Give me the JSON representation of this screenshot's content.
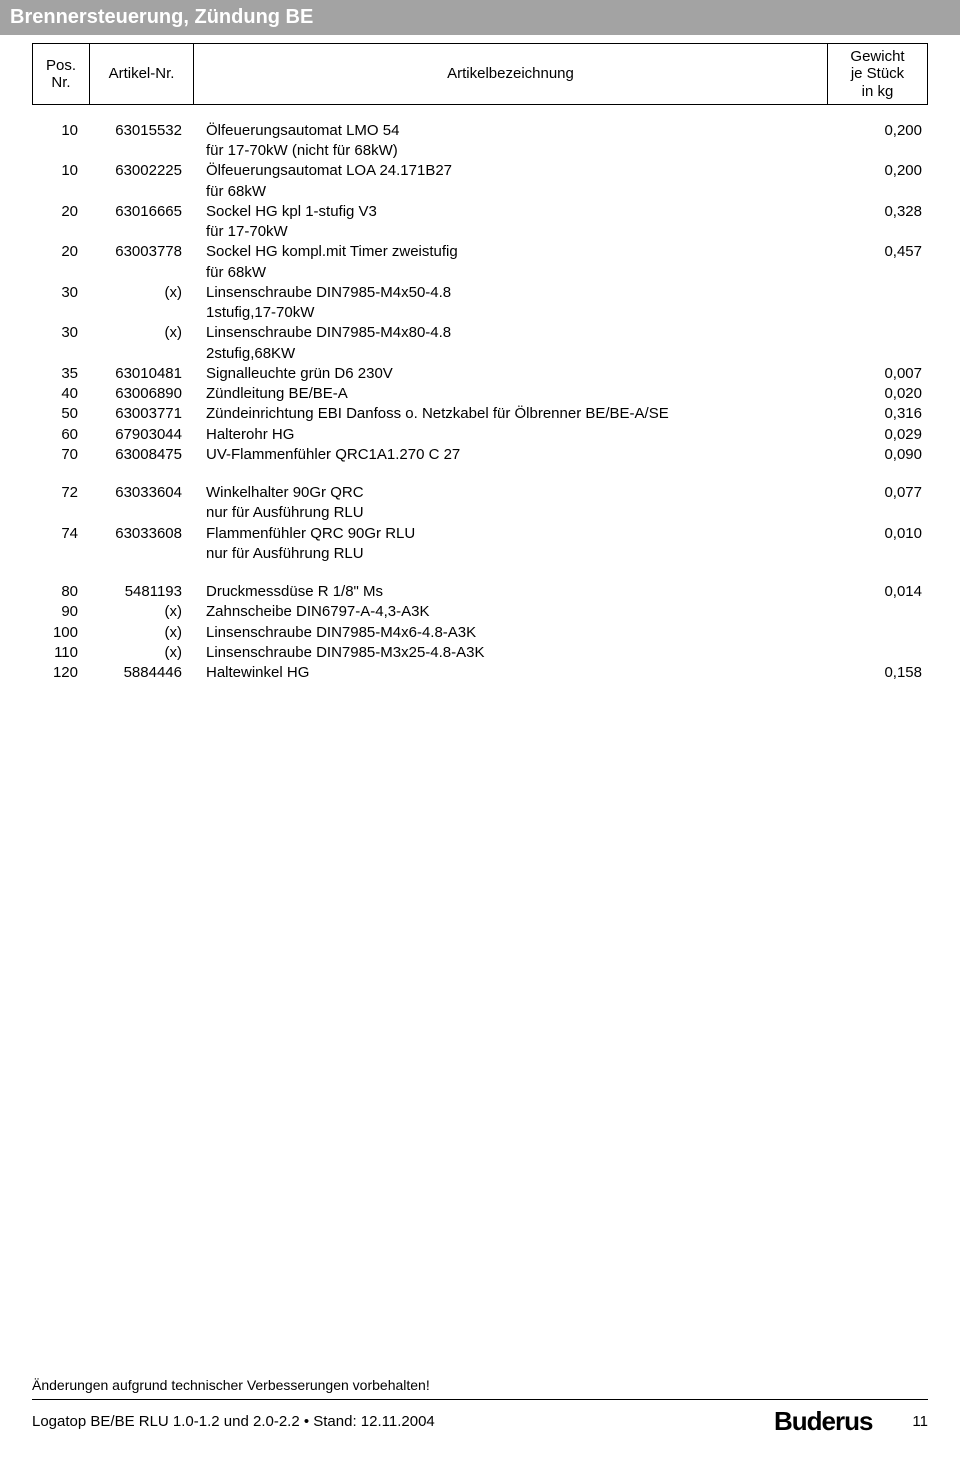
{
  "header": {
    "title": "Brennersteuerung, Zündung BE"
  },
  "columns": {
    "pos": "Pos.\nNr.",
    "art": "Artikel-Nr.",
    "desc": "Artikelbezeichnung",
    "wt": "Gewicht\nje Stück\nin kg"
  },
  "groups": [
    {
      "rows": [
        {
          "pos": "10",
          "art": "63015532",
          "desc": "Ölfeuerungsautomat LMO 54",
          "wt": "0,200"
        },
        {
          "pos": "",
          "art": "",
          "desc": "für 17-70kW (nicht für 68kW)",
          "wt": ""
        },
        {
          "pos": "10",
          "art": "63002225",
          "desc": "Ölfeuerungsautomat  LOA 24.171B27",
          "wt": "0,200"
        },
        {
          "pos": "",
          "art": "",
          "desc": "für 68kW",
          "wt": ""
        },
        {
          "pos": "20",
          "art": "63016665",
          "desc": "Sockel HG kpl 1-stufig V3",
          "wt": "0,328"
        },
        {
          "pos": "",
          "art": "",
          "desc": "für 17-70kW",
          "wt": ""
        },
        {
          "pos": "20",
          "art": "63003778",
          "desc": "Sockel HG kompl.mit Timer zweistufig",
          "wt": "0,457"
        },
        {
          "pos": "",
          "art": "",
          "desc": "für 68kW",
          "wt": ""
        },
        {
          "pos": "30",
          "art": "(x)",
          "desc": "Linsenschraube DIN7985-M4x50-4.8",
          "wt": ""
        },
        {
          "pos": "",
          "art": "",
          "desc": "1stufig,17-70kW",
          "wt": ""
        },
        {
          "pos": "30",
          "art": "(x)",
          "desc": "Linsenschraube DIN7985-M4x80-4.8",
          "wt": ""
        },
        {
          "pos": "",
          "art": "",
          "desc": "2stufig,68KW",
          "wt": ""
        },
        {
          "pos": "35",
          "art": "63010481",
          "desc": "Signalleuchte grün D6 230V",
          "wt": "0,007"
        },
        {
          "pos": "40",
          "art": "63006890",
          "desc": "Zündleitung BE/BE-A",
          "wt": "0,020"
        },
        {
          "pos": "50",
          "art": "63003771",
          "desc": "Zündeinrichtung EBI Danfoss o. Netzkabel für Ölbrenner BE/BE-A/SE",
          "wt": "0,316"
        },
        {
          "pos": "60",
          "art": "67903044",
          "desc": "Halterohr HG",
          "wt": "0,029"
        },
        {
          "pos": "70",
          "art": "63008475",
          "desc": "UV-Flammenfühler QRC1A1.270 C 27",
          "wt": "0,090"
        }
      ]
    },
    {
      "rows": [
        {
          "pos": "72",
          "art": "63033604",
          "desc": "Winkelhalter 90Gr QRC",
          "wt": "0,077"
        },
        {
          "pos": "",
          "art": "",
          "desc": "nur für Ausführung RLU",
          "wt": ""
        },
        {
          "pos": "74",
          "art": "63033608",
          "desc": "Flammenfühler QRC 90Gr RLU",
          "wt": "0,010"
        },
        {
          "pos": "",
          "art": "",
          "desc": "nur für Ausführung RLU",
          "wt": ""
        }
      ]
    },
    {
      "rows": [
        {
          "pos": "80",
          "art": "5481193",
          "desc": "Druckmessdüse R 1/8\" Ms",
          "wt": "0,014"
        },
        {
          "pos": "90",
          "art": "(x)",
          "desc": "Zahnscheibe DIN6797-A-4,3-A3K",
          "wt": ""
        },
        {
          "pos": "100",
          "art": "(x)",
          "desc": "Linsenschraube DIN7985-M4x6-4.8-A3K",
          "wt": ""
        },
        {
          "pos": "110",
          "art": "(x)",
          "desc": "Linsenschraube DIN7985-M3x25-4.8-A3K",
          "wt": ""
        },
        {
          "pos": "120",
          "art": "5884446",
          "desc": "Haltewinkel HG",
          "wt": "0,158"
        }
      ]
    }
  ],
  "footer": {
    "note": "Änderungen aufgrund technischer Verbesserungen vorbehalten!",
    "docline": "Logatop BE/BE RLU 1.0-1.2 und 2.0-2.2 • Stand: 12.11.2004",
    "logo": "Buderus",
    "page": "11"
  }
}
